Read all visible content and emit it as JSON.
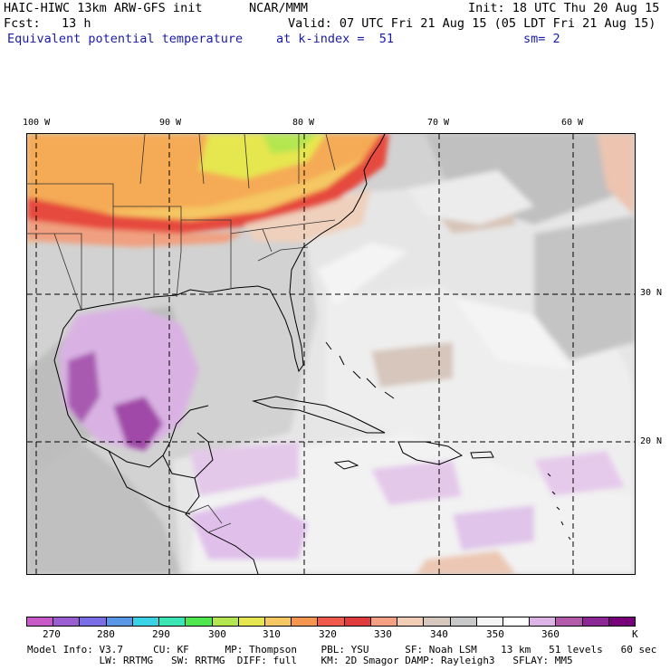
{
  "header": {
    "model": "HAIC-HIWC 13km ARW-GFS init",
    "org": "NCAR/MMM",
    "init": "Init: 18 UTC Thu 20 Aug 15",
    "fcst_label": "Fcst:",
    "fcst_value": "13 h",
    "valid": "Valid: 07 UTC Fri 21 Aug 15 (05 LDT Fri 21 Aug 15)",
    "field": "Equivalent potential temperature",
    "level": "at k-index =  51",
    "smooth": "sm= 2"
  },
  "map": {
    "lon_labels": [
      "100 W",
      "90 W",
      "80 W",
      "70 W",
      "60 W"
    ],
    "lat_labels": [
      "30 N",
      "20 N"
    ]
  },
  "colorbar": {
    "colors": [
      "#c85ac8",
      "#9b5ed2",
      "#7a6ee6",
      "#5a96e6",
      "#3cd2e6",
      "#3ce6b4",
      "#50e650",
      "#b4e650",
      "#e6e650",
      "#f5c864",
      "#f59650",
      "#f05a4b",
      "#e13c3c",
      "#f5a082",
      "#f0cdb4",
      "#d7c8be",
      "#c8c8c8",
      "#f5f5f5",
      "#ffffff",
      "#dcb4e6",
      "#b45aaa",
      "#8c2896",
      "#780078"
    ],
    "labels": [
      "270",
      "280",
      "290",
      "300",
      "310",
      "320",
      "330",
      "340",
      "350",
      "360"
    ],
    "unit": "K"
  },
  "footer": {
    "line1": "Model Info: V3.7     CU: KF      MP: Thompson    PBL: YSU      SF: Noah LSM    13 km   51 levels   60 sec",
    "line2": "            LW: RRTMG   SW: RRTMG  DIFF: full    KM: 2D Smagor DAMP: Rayleigh3   SFLAY: MM5"
  }
}
